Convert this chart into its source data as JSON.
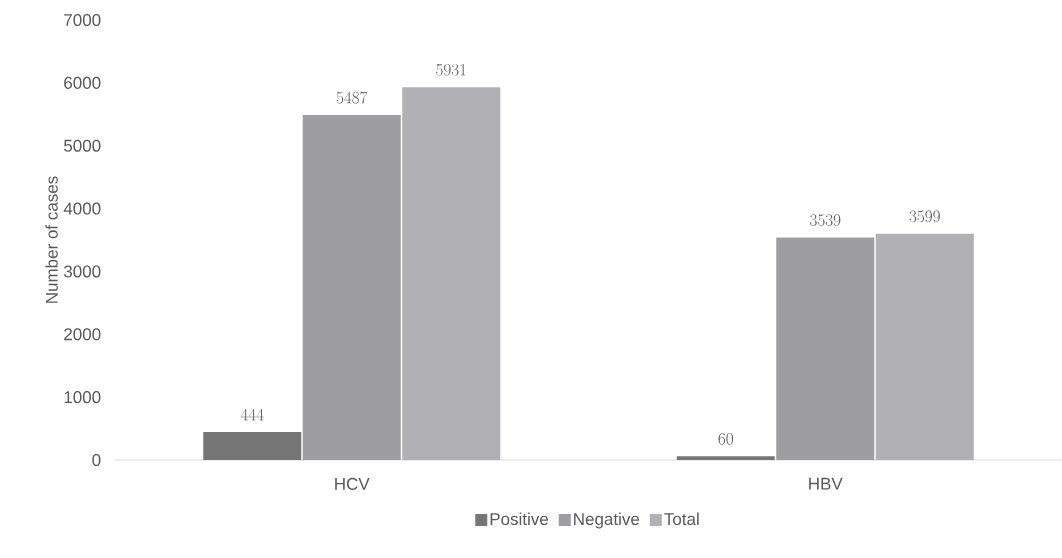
{
  "chart_data": {
    "type": "bar",
    "ylabel": "Number of cases",
    "categories": [
      "HCV",
      "HBV"
    ],
    "series": [
      {
        "name": "Positive",
        "color": "#767676",
        "values": [
          444,
          60
        ]
      },
      {
        "name": "Negative",
        "color": "#9e9ea2",
        "values": [
          5487,
          3539
        ]
      },
      {
        "name": "Total",
        "color": "#b1b1b5",
        "values": [
          5931,
          3599
        ]
      }
    ],
    "ylim": [
      0,
      7000
    ],
    "yticks": [
      0,
      1000,
      2000,
      3000,
      4000,
      5000,
      6000,
      7000
    ],
    "data_labels": true,
    "legend": "bottom"
  }
}
